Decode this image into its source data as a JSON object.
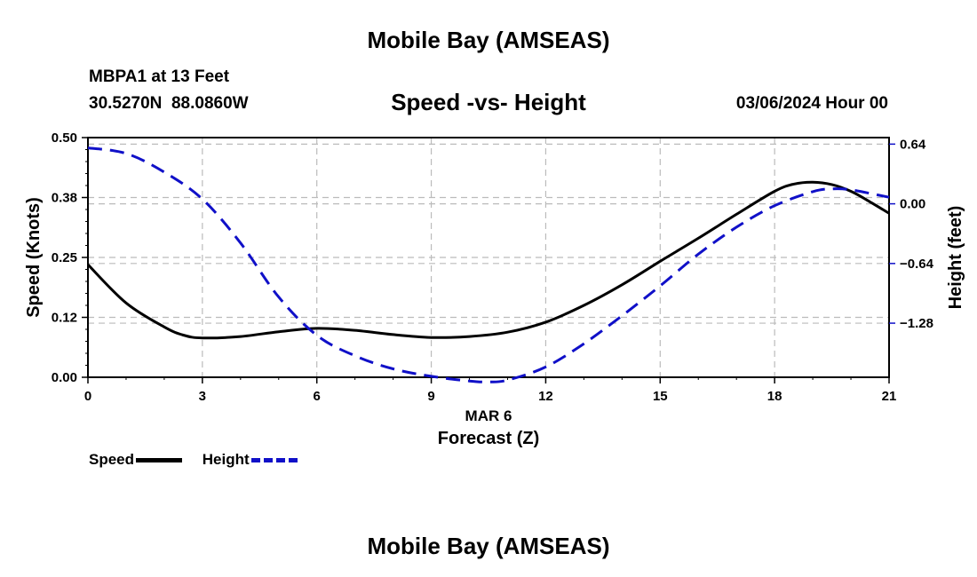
{
  "header": {
    "title": "Mobile Bay (AMSEAS)",
    "station_name": "MBPA1 at 13 Feet",
    "station_coords": "30.5270N  88.0860W",
    "subtitle": "Speed -vs- Height",
    "date": "03/06/2024 Hour 00"
  },
  "footer": {
    "title": "Mobile Bay (AMSEAS)"
  },
  "legend": {
    "speed_label": "Speed",
    "height_label": "Height"
  },
  "chart_data": {
    "type": "line",
    "title": "Speed -vs- Height",
    "xlabel": "Forecast (Z)",
    "xsublabel": "MAR 6",
    "ylabel_left": "Speed (Knots)",
    "ylabel_right": "Height (feet)",
    "xlim": [
      0,
      21
    ],
    "xticks": [
      0,
      3,
      6,
      9,
      12,
      15,
      18,
      21
    ],
    "xtick_labels": [
      "0",
      "3",
      "6",
      "9",
      "12",
      "15",
      "18",
      "21"
    ],
    "ylim_left": [
      0,
      0.5
    ],
    "yticks_left": [
      0.0,
      0.125,
      0.25,
      0.375,
      0.5
    ],
    "ytick_labels_left": [
      "0.00",
      "0.12",
      "0.25",
      "0.38",
      "0.50"
    ],
    "ylim_right": [
      -1.86,
      0.71
    ],
    "yticks_right": [
      0.64,
      0.0,
      -0.64,
      -1.28
    ],
    "ytick_labels_right": [
      "0.64",
      "0.00",
      "−0.64",
      "−1.28"
    ],
    "grid": true,
    "colors": {
      "speed": "#000000",
      "height": "#1010c8",
      "grid": "#bbbbbb"
    },
    "series": [
      {
        "name": "Speed",
        "axis": "left",
        "x": [
          0,
          1,
          2,
          2.5,
          3,
          4,
          5,
          6,
          7,
          8,
          9,
          10,
          11,
          12,
          13,
          14,
          15,
          16,
          17,
          18,
          18.5,
          19,
          19.5,
          20,
          20.5,
          21
        ],
        "values": [
          0.235,
          0.155,
          0.105,
          0.088,
          0.082,
          0.085,
          0.095,
          0.102,
          0.098,
          0.089,
          0.083,
          0.085,
          0.094,
          0.115,
          0.15,
          0.193,
          0.242,
          0.29,
          0.34,
          0.388,
          0.403,
          0.407,
          0.402,
          0.388,
          0.366,
          0.342
        ]
      },
      {
        "name": "Height",
        "axis": "right",
        "x": [
          0,
          1,
          2,
          3,
          4,
          5,
          6,
          7,
          8,
          9,
          10,
          10.5,
          11,
          12,
          13,
          14,
          15,
          16,
          17,
          18,
          19,
          19.5,
          20,
          21
        ],
        "values": [
          0.6,
          0.54,
          0.34,
          0.05,
          -0.42,
          -1.0,
          -1.41,
          -1.63,
          -1.77,
          -1.85,
          -1.9,
          -1.91,
          -1.89,
          -1.75,
          -1.5,
          -1.2,
          -0.88,
          -0.54,
          -0.25,
          -0.02,
          0.13,
          0.16,
          0.15,
          0.07
        ]
      }
    ]
  }
}
